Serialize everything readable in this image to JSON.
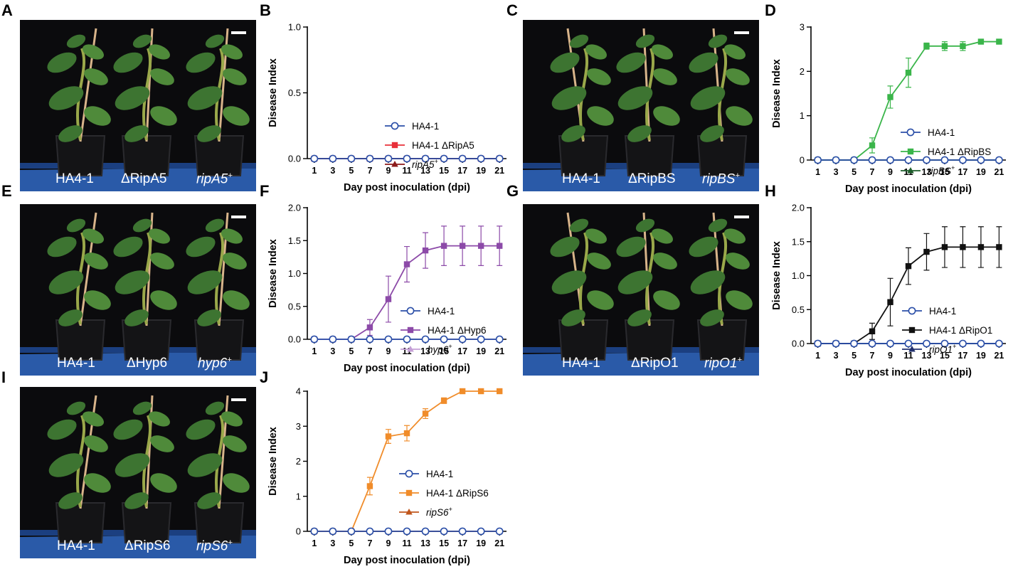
{
  "panels": {
    "A": {
      "letter": "A",
      "labels": [
        "HA4-1",
        "ΔRipA5",
        "ripA5"
      ],
      "sup": "+"
    },
    "C": {
      "letter": "C",
      "labels": [
        "HA4-1",
        "ΔRipBS",
        "ripBS"
      ],
      "sup": "+"
    },
    "E": {
      "letter": "E",
      "labels": [
        "HA4-1",
        "ΔHyp6",
        "hyp6"
      ],
      "sup": "+"
    },
    "G": {
      "letter": "G",
      "labels": [
        "HA4-1",
        "ΔRipO1",
        "ripO1"
      ],
      "sup": "+"
    },
    "I": {
      "letter": "I",
      "labels": [
        "HA4-1",
        "ΔRipS6",
        "ripS6"
      ],
      "sup": "+"
    }
  },
  "chart_data": [
    {
      "panel": "B",
      "type": "line",
      "xlabel": "Day post inoculation (dpi)",
      "ylabel": "Disease Index",
      "x": [
        1,
        3,
        5,
        7,
        9,
        11,
        13,
        15,
        17,
        19,
        21
      ],
      "ylim": [
        0,
        1.0
      ],
      "yticks": [
        "0.0",
        "0.5",
        "1.0"
      ],
      "series": [
        {
          "name": "HA4-1",
          "marker": "circle-open",
          "color": "#2b4fa8",
          "values": [
            0,
            0,
            0,
            0,
            0,
            0,
            0,
            0,
            0,
            0,
            0
          ]
        },
        {
          "name": "HA4-1 ΔRipA5",
          "marker": "square",
          "color": "#e8303a",
          "values": [
            0,
            0,
            0,
            0,
            0,
            0,
            0,
            0,
            0,
            0,
            0
          ]
        },
        {
          "name": "ripA5",
          "sup": "+",
          "italic": true,
          "marker": "triangle",
          "color": "#8b1a1a",
          "values": [
            0,
            0,
            0,
            0,
            0,
            0,
            0,
            0,
            0,
            0,
            0
          ]
        }
      ]
    },
    {
      "panel": "D",
      "type": "line",
      "xlabel": "Day post inoculation (dpi)",
      "ylabel": "Disease Index",
      "x": [
        1,
        3,
        5,
        7,
        9,
        11,
        13,
        15,
        17,
        19,
        21
      ],
      "ylim": [
        0,
        3
      ],
      "yticks": [
        "0",
        "1",
        "2",
        "3"
      ],
      "series": [
        {
          "name": "HA4-1",
          "marker": "circle-open",
          "color": "#2b4fa8",
          "values": [
            0,
            0,
            0,
            0,
            0,
            0,
            0,
            0,
            0,
            0,
            0
          ]
        },
        {
          "name": "HA4-1 ΔRipBS",
          "marker": "square",
          "color": "#3ab54a",
          "values": [
            0,
            0,
            0,
            0.33,
            1.42,
            1.97,
            2.57,
            2.57,
            2.57,
            2.67,
            2.67
          ],
          "errors": [
            0,
            0,
            0,
            0.17,
            0.25,
            0.33,
            0.07,
            0.1,
            0.1,
            0.04,
            0.03
          ]
        },
        {
          "name": "ripBS",
          "sup": "+",
          "italic": true,
          "marker": "triangle",
          "color": "#1d5e2b",
          "values": [
            0,
            0,
            0,
            0,
            0,
            0,
            0,
            0,
            0,
            0,
            0
          ]
        }
      ]
    },
    {
      "panel": "F",
      "type": "line",
      "xlabel": "Day post inoculation (dpi)",
      "ylabel": "Disease Index",
      "x": [
        1,
        3,
        5,
        7,
        9,
        11,
        13,
        15,
        17,
        19,
        21
      ],
      "ylim": [
        0,
        2.0
      ],
      "yticks": [
        "0.0",
        "0.5",
        "1.0",
        "1.5",
        "2.0"
      ],
      "series": [
        {
          "name": "HA4-1",
          "marker": "circle-open",
          "color": "#2b4fa8",
          "values": [
            0,
            0,
            0,
            0,
            0,
            0,
            0,
            0,
            0,
            0,
            0
          ]
        },
        {
          "name": "HA4-1 ΔHyp6",
          "marker": "square",
          "color": "#8c4aa8",
          "values": [
            0,
            0,
            0,
            0.18,
            0.61,
            1.14,
            1.35,
            1.42,
            1.42,
            1.42,
            1.42
          ],
          "errors": [
            0,
            0,
            0,
            0.12,
            0.35,
            0.27,
            0.27,
            0.3,
            0.3,
            0.3,
            0.3
          ]
        },
        {
          "name": "hyp6",
          "sup": "+",
          "italic": true,
          "marker": "triangle",
          "color": "#c59fd6",
          "values": [
            0,
            0,
            0,
            0,
            0,
            0,
            0,
            0,
            0,
            0,
            0
          ]
        }
      ]
    },
    {
      "panel": "H",
      "type": "line",
      "xlabel": "Day post inoculation (dpi)",
      "ylabel": "Disease Index",
      "x": [
        1,
        3,
        5,
        7,
        9,
        11,
        13,
        15,
        17,
        19,
        21
      ],
      "ylim": [
        0,
        2.0
      ],
      "yticks": [
        "0.0",
        "0.5",
        "1.0",
        "1.5",
        "2.0"
      ],
      "series": [
        {
          "name": "HA4-1",
          "marker": "circle-open",
          "color": "#2b4fa8",
          "values": [
            0,
            0,
            0,
            0,
            0,
            0,
            0,
            0,
            0,
            0,
            0
          ]
        },
        {
          "name": "HA4-1 ΔRipO1",
          "marker": "square",
          "color": "#111111",
          "values": [
            0,
            0,
            0,
            0.18,
            0.61,
            1.14,
            1.35,
            1.42,
            1.42,
            1.42,
            1.42
          ],
          "errors": [
            0,
            0,
            0,
            0.12,
            0.35,
            0.27,
            0.27,
            0.3,
            0.3,
            0.3,
            0.3
          ]
        },
        {
          "name": "ripO1",
          "sup": "+",
          "italic": true,
          "marker": "triangle",
          "color": "#22316e",
          "values": [
            0,
            0,
            0,
            0,
            0,
            0,
            0,
            0,
            0,
            0,
            0
          ]
        }
      ]
    },
    {
      "panel": "J",
      "type": "line",
      "xlabel": "Day post inoculation (dpi)",
      "ylabel": "Disease Index",
      "x": [
        1,
        3,
        5,
        7,
        9,
        11,
        13,
        15,
        17,
        19,
        21
      ],
      "ylim": [
        0,
        4
      ],
      "yticks": [
        "0",
        "1",
        "2",
        "3",
        "4"
      ],
      "series": [
        {
          "name": "HA4-1",
          "marker": "circle-open",
          "color": "#2b4fa8",
          "values": [
            0,
            0,
            0,
            0,
            0,
            0,
            0,
            0,
            0,
            0,
            0
          ]
        },
        {
          "name": "HA4-1 ΔRipS6",
          "marker": "square",
          "color": "#f08c2a",
          "values": [
            0,
            0,
            0,
            1.29,
            2.71,
            2.8,
            3.36,
            3.73,
            4.0,
            4.0,
            4.0
          ],
          "errors": [
            0,
            0,
            0,
            0.25,
            0.2,
            0.22,
            0.14,
            0.08,
            0,
            0,
            0
          ]
        },
        {
          "name": "ripS6",
          "sup": "+",
          "italic": true,
          "marker": "triangle",
          "color": "#c0561c",
          "values": [
            0,
            0,
            0,
            0,
            0,
            0,
            0,
            0,
            0,
            0,
            0
          ]
        }
      ]
    }
  ]
}
